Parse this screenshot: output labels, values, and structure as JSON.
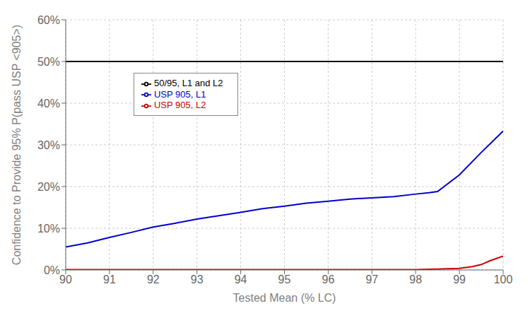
{
  "chart_data": {
    "type": "line",
    "title": "",
    "xlabel": "Tested Mean (% LC)",
    "ylabel": "Confidence to Provide 95% P(pass USP <905>)",
    "xlim": [
      90,
      100
    ],
    "ylim": [
      0.0,
      0.6
    ],
    "xticks": [
      90,
      91,
      92,
      93,
      94,
      95,
      96,
      97,
      98,
      99,
      100
    ],
    "yticks": [
      {
        "value": 0.0,
        "label": "0%"
      },
      {
        "value": 0.1,
        "label": "10%"
      },
      {
        "value": 0.2,
        "label": "20%"
      },
      {
        "value": 0.3,
        "label": "30%"
      },
      {
        "value": 0.4,
        "label": "40%"
      },
      {
        "value": 0.5,
        "label": "50%"
      },
      {
        "value": 0.6,
        "label": "60%"
      }
    ],
    "grid": true,
    "legend": "upper left",
    "series": [
      {
        "name": "50/95, L1 and L2",
        "color": "#000000",
        "type": "hline",
        "y": 0.5
      },
      {
        "name": "USP 905, L1",
        "color": "#0000cc",
        "x": [
          90,
          90.5,
          91,
          91.5,
          92,
          92.5,
          93,
          93.5,
          94,
          94.5,
          95,
          95.5,
          96,
          96.5,
          97,
          97.5,
          98,
          98.3,
          98.5,
          99,
          99.5,
          100
        ],
        "values": [
          0.055,
          0.065,
          0.078,
          0.09,
          0.103,
          0.112,
          0.122,
          0.13,
          0.138,
          0.147,
          0.153,
          0.16,
          0.165,
          0.17,
          0.173,
          0.176,
          0.182,
          0.185,
          0.188,
          0.228,
          0.282,
          0.333
        ]
      },
      {
        "name": "USP 905, L2",
        "color": "#cc0000",
        "x": [
          90,
          91,
          92,
          93,
          94,
          95,
          96,
          97,
          98,
          98.5,
          99,
          99.3,
          99.5,
          99.7,
          100
        ],
        "values": [
          0.001,
          0.001,
          0.001,
          0.001,
          0.001,
          0.001,
          0.001,
          0.001,
          0.001,
          0.002,
          0.004,
          0.008,
          0.013,
          0.022,
          0.033
        ]
      }
    ]
  }
}
